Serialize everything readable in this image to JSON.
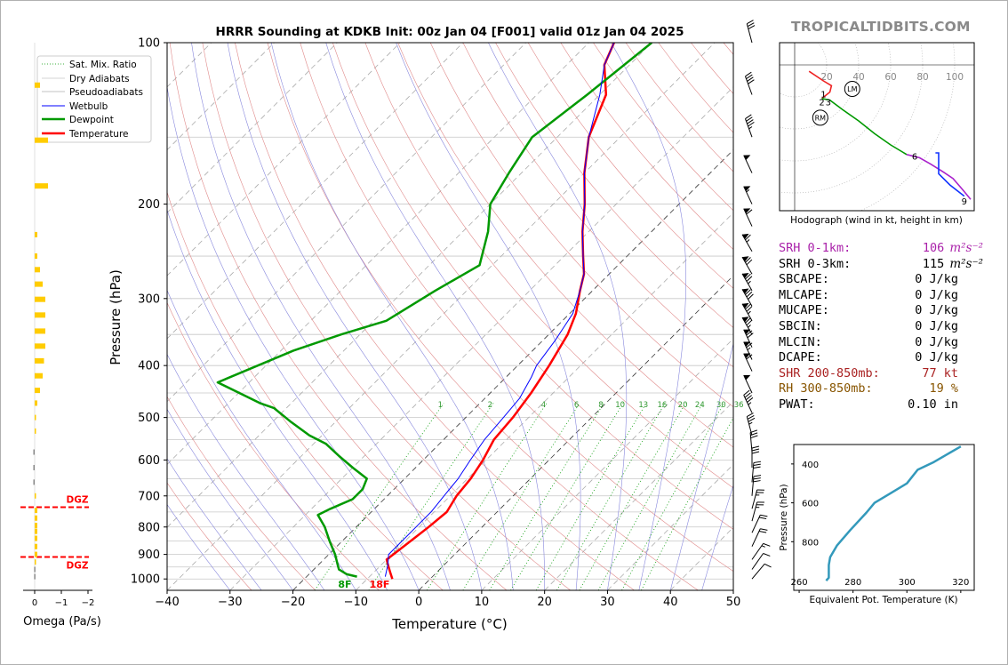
{
  "title": "HRRR Sounding at KDKB Init: 00z Jan 04 [F001] valid 01z Jan 04 2025",
  "watermark": "TROPICALTIDBITS.COM",
  "colors": {
    "temperature": "#ff0000",
    "dewpoint": "#009900",
    "wetbulb": "#0000ff",
    "theta_e": "#3399bb",
    "srh": "#aa22aa",
    "shr": "#aa2222",
    "rh": "#885500",
    "dgz": "#ff0000",
    "omega": "#ffcc00"
  },
  "chart_data": [
    {
      "name": "skewt",
      "type": "line",
      "xlabel": "Temperature (°C)",
      "ylabel": "Pressure (hPa)",
      "xlim": [
        -40,
        50
      ],
      "ylim": [
        1050,
        100
      ],
      "y_scale": "log",
      "x_ticks": [
        "−40",
        "−30",
        "−20",
        "−10",
        "0",
        "10",
        "20",
        "30",
        "40",
        "50"
      ],
      "y_ticks": [
        "100",
        "200",
        "300",
        "400",
        "500",
        "600",
        "700",
        "800",
        "900",
        "1000"
      ],
      "legend": {
        "placement": "top-left",
        "entries": [
          "Sat. Mix. Ratio",
          "Dry Adiabats",
          "Pseudoadiabats",
          "Wetbulb",
          "Dewpoint",
          "Temperature"
        ]
      },
      "mixing_ratio_labels": [
        "1",
        "2",
        "4",
        "6",
        "8",
        "10",
        "13",
        "16",
        "20",
        "24",
        "30",
        "36"
      ],
      "surface_labels": {
        "dewpoint": "8F",
        "temperature": "18F"
      },
      "series": [
        {
          "name": "Temperature",
          "points": [
            [
              -6,
              1000
            ],
            [
              -7.5,
              970
            ],
            [
              -9,
              940
            ],
            [
              -10,
              920
            ],
            [
              -9.5,
              880
            ],
            [
              -9,
              840
            ],
            [
              -8.5,
              800
            ],
            [
              -8,
              750
            ],
            [
              -9,
              700
            ],
            [
              -9.5,
              650
            ],
            [
              -10.5,
              600
            ],
            [
              -12,
              550
            ],
            [
              -12.5,
              500
            ],
            [
              -13.5,
              450
            ],
            [
              -15,
              400
            ],
            [
              -17,
              350
            ],
            [
              -19,
              320
            ],
            [
              -22,
              290
            ],
            [
              -24,
              270
            ],
            [
              -27,
              250
            ],
            [
              -31,
              225
            ],
            [
              -35,
              200
            ],
            [
              -40,
              175
            ],
            [
              -45,
              150
            ],
            [
              -49,
              125
            ],
            [
              -54,
              110
            ],
            [
              -56,
              100
            ]
          ]
        },
        {
          "name": "Dewpoint",
          "points": [
            [
              -12,
              990
            ],
            [
              -14,
              980
            ],
            [
              -16,
              960
            ],
            [
              -17,
              940
            ],
            [
              -19,
              900
            ],
            [
              -22,
              850
            ],
            [
              -25,
              800
            ],
            [
              -28,
              760
            ],
            [
              -27,
              740
            ],
            [
              -25,
              710
            ],
            [
              -25,
              680
            ],
            [
              -26,
              650
            ],
            [
              -30,
              620
            ],
            [
              -34,
              590
            ],
            [
              -38,
              560
            ],
            [
              -42,
              540
            ],
            [
              -47,
              510
            ],
            [
              -52,
              480
            ],
            [
              -55,
              470
            ],
            [
              -65,
              430
            ],
            [
              -58,
              375
            ],
            [
              -53,
              350
            ],
            [
              -48,
              330
            ],
            [
              -45,
              290
            ],
            [
              -42,
              260
            ],
            [
              -46,
              225
            ],
            [
              -50,
              200
            ],
            [
              -52,
              175
            ],
            [
              -54,
              150
            ],
            [
              -52,
              125
            ],
            [
              -50,
              100
            ]
          ]
        },
        {
          "name": "Wetbulb",
          "points": [
            [
              -7.5,
              990
            ],
            [
              -9,
              940
            ],
            [
              -10.5,
              900
            ],
            [
              -10.5,
              850
            ],
            [
              -10.5,
              800
            ],
            [
              -10.5,
              750
            ],
            [
              -11,
              700
            ],
            [
              -11.5,
              650
            ],
            [
              -12.5,
              600
            ],
            [
              -13.5,
              550
            ],
            [
              -14,
              500
            ],
            [
              -14.5,
              460
            ],
            [
              -16,
              420
            ],
            [
              -17,
              400
            ],
            [
              -18,
              360
            ],
            [
              -19.5,
              320
            ],
            [
              -22,
              290
            ],
            [
              -24,
              270
            ],
            [
              -27,
              250
            ],
            [
              -31,
              225
            ],
            [
              -35,
              200
            ],
            [
              -40,
              175
            ],
            [
              -45,
              150
            ],
            [
              -50,
              125
            ],
            [
              -54,
              110
            ],
            [
              -56,
              100
            ]
          ]
        }
      ]
    },
    {
      "name": "hodograph",
      "type": "line",
      "caption": "Hodograph (wind in kt, height in km)",
      "ring_labels": [
        "20",
        "40",
        "60",
        "80",
        "100"
      ],
      "height_labels": [
        "1",
        "2",
        "3",
        "6",
        "9"
      ],
      "markers": [
        "LM",
        "RM"
      ]
    },
    {
      "name": "theta-e",
      "type": "line",
      "xlabel": "Equivalent Pot. Temperature (K)",
      "ylabel": "Pressure (hPa)",
      "xlim": [
        258,
        325
      ],
      "ylim": [
        1050,
        300
      ],
      "x_ticks": [
        "260",
        "280",
        "300",
        "320"
      ],
      "y_ticks": [
        "400",
        "600",
        "800"
      ],
      "points": [
        [
          270,
          1000
        ],
        [
          271,
          985
        ],
        [
          271,
          920
        ],
        [
          271.5,
          880
        ],
        [
          274,
          820
        ],
        [
          279,
          740
        ],
        [
          285,
          650
        ],
        [
          288,
          600
        ],
        [
          294,
          550
        ],
        [
          300,
          500
        ],
        [
          304,
          430
        ],
        [
          310,
          390
        ],
        [
          315,
          350
        ],
        [
          320,
          310
        ]
      ]
    },
    {
      "name": "omega",
      "type": "bar",
      "xlabel": "Omega (Pa/s)",
      "xlim": [
        0.3,
        -2.5
      ],
      "x_ticks": [
        "0",
        "−1",
        "−2"
      ],
      "dgz_label": "DGZ",
      "dgz_levels": [
        735,
        910
      ],
      "points": [
        [
          -0.2,
          120
        ],
        [
          -0.5,
          152
        ],
        [
          -0.5,
          185
        ],
        [
          -0.1,
          228
        ],
        [
          -0.1,
          250
        ],
        [
          -0.2,
          265
        ],
        [
          -0.3,
          282
        ],
        [
          -0.4,
          301
        ],
        [
          -0.4,
          322
        ],
        [
          -0.4,
          345
        ],
        [
          -0.4,
          368
        ],
        [
          -0.35,
          392
        ],
        [
          -0.3,
          418
        ],
        [
          -0.2,
          445
        ],
        [
          -0.1,
          470
        ],
        [
          -0.05,
          500
        ],
        [
          -0.02,
          530
        ],
        [
          0.05,
          580
        ],
        [
          0.05,
          620
        ],
        [
          0.05,
          660
        ],
        [
          -0.05,
          700
        ],
        [
          -0.1,
          745
        ],
        [
          -0.1,
          770
        ],
        [
          -0.1,
          795
        ],
        [
          -0.1,
          815
        ],
        [
          -0.1,
          840
        ],
        [
          -0.1,
          870
        ],
        [
          -0.1,
          900
        ],
        [
          -0.02,
          930
        ],
        [
          0.02,
          960
        ],
        [
          0.02,
          990
        ]
      ]
    }
  ],
  "stats": [
    {
      "label": "SRH 0-1km:",
      "value": "106",
      "unit": "m²s⁻²",
      "color": "#aa22aa"
    },
    {
      "label": "SRH 0-3km:",
      "value": "115",
      "unit": "m²s⁻²",
      "color": "#000000"
    },
    {
      "label": "SBCAPE:",
      "value": "0 J/kg",
      "unit": "",
      "color": "#000000"
    },
    {
      "label": "MLCAPE:",
      "value": "0 J/kg",
      "unit": "",
      "color": "#000000"
    },
    {
      "label": "MUCAPE:",
      "value": "0 J/kg",
      "unit": "",
      "color": "#000000"
    },
    {
      "label": "SBCIN:",
      "value": "0 J/kg",
      "unit": "",
      "color": "#000000"
    },
    {
      "label": "MLCIN:",
      "value": "0 J/kg",
      "unit": "",
      "color": "#000000"
    },
    {
      "label": "DCAPE:",
      "value": "0 J/kg",
      "unit": "",
      "color": "#000000"
    },
    {
      "label": "SHR 200-850mb:",
      "value": "77 kt",
      "unit": "",
      "color": "#aa2222"
    },
    {
      "label": "RH 300-850mb:",
      "value": "19 %",
      "unit": "",
      "color": "#885500"
    },
    {
      "label": "PWAT:",
      "value": "0.10 in",
      "unit": "",
      "color": "#000000"
    }
  ],
  "wind_barbs": {
    "pressures": [
      100,
      125,
      150,
      175,
      200,
      220,
      245,
      270,
      290,
      310,
      330,
      350,
      370,
      390,
      410,
      450,
      490,
      540,
      580,
      620,
      660,
      700,
      740,
      780,
      820,
      870,
      920,
      960,
      1000
    ],
    "speeds_kt": [
      30,
      40,
      45,
      50,
      55,
      60,
      65,
      70,
      75,
      80,
      75,
      75,
      70,
      65,
      60,
      50,
      45,
      35,
      30,
      30,
      30,
      30,
      25,
      25,
      20,
      20,
      15,
      10,
      10
    ],
    "dirs_deg": [
      300,
      295,
      295,
      290,
      290,
      290,
      285,
      285,
      285,
      285,
      285,
      285,
      290,
      290,
      290,
      290,
      290,
      300,
      310,
      315,
      320,
      320,
      330,
      330,
      340,
      340,
      350,
      350,
      355
    ]
  }
}
